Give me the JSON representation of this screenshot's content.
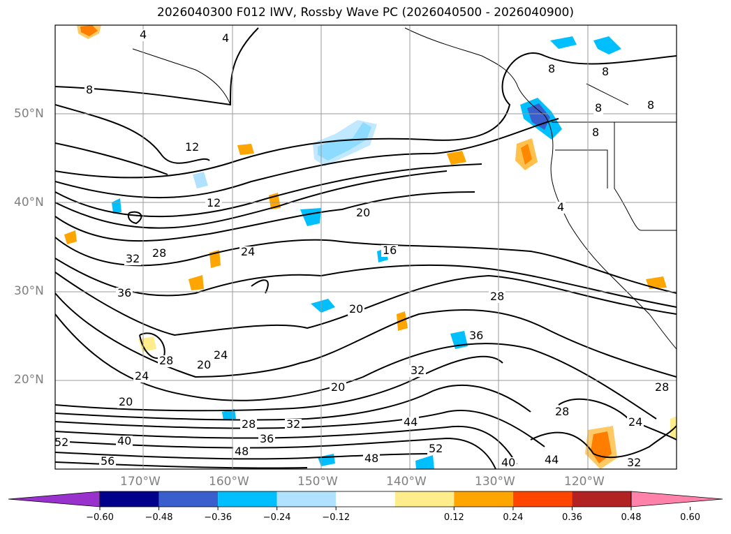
{
  "title": "2026040300 F012 IWV, Rossby Wave PC (2026040500 - 2026040900)",
  "lat_labels": [
    "50°N",
    "40°N",
    "30°N",
    "20°N"
  ],
  "lon_labels": [
    "170°W",
    "160°W",
    "150°W",
    "140°W",
    "130°W",
    "120°W"
  ],
  "colorbar": {
    "ticks": [
      "−0.60",
      "−0.48",
      "−0.36",
      "−0.24",
      "−0.12",
      "0.12",
      "0.24",
      "0.36",
      "0.48",
      "0.60"
    ],
    "colors": [
      "#9932cc",
      "#00008b",
      "#3a5fcd",
      "#00bfff",
      "#b0e2ff",
      "#ffffff",
      "#ffec8b",
      "#ffa500",
      "#ff4500",
      "#b22222",
      "#ff82ab"
    ]
  },
  "contour_labels": [
    "4",
    "4",
    "8",
    "8",
    "8",
    "8",
    "8",
    "8",
    "4",
    "12",
    "12",
    "20",
    "16",
    "24",
    "28",
    "32",
    "36",
    "20",
    "28",
    "36",
    "24",
    "28",
    "20",
    "24",
    "20",
    "32",
    "20",
    "28",
    "32",
    "36",
    "48",
    "56",
    "52",
    "40",
    "44",
    "52",
    "48",
    "40",
    "44",
    "28",
    "24",
    "28",
    "32"
  ]
}
